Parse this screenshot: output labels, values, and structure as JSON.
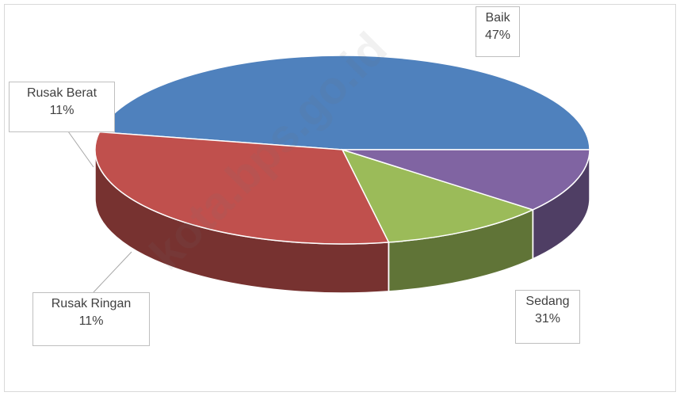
{
  "chart_data": {
    "type": "pie",
    "title": "",
    "slices": [
      {
        "label": "Baik",
        "value": 47,
        "value_label": "47%",
        "color": "#4f81bd"
      },
      {
        "label": "Sedang",
        "value": 31,
        "value_label": "31%",
        "color": "#c0504d"
      },
      {
        "label": "Rusak Ringan",
        "value": 11,
        "value_label": "11%",
        "color": "#9bbb59"
      },
      {
        "label": "Rusak Berat",
        "value": 11,
        "value_label": "11%",
        "color": "#8064a2"
      }
    ],
    "legend": "none",
    "style": "3d"
  },
  "watermark": "kota.bps.go.id"
}
